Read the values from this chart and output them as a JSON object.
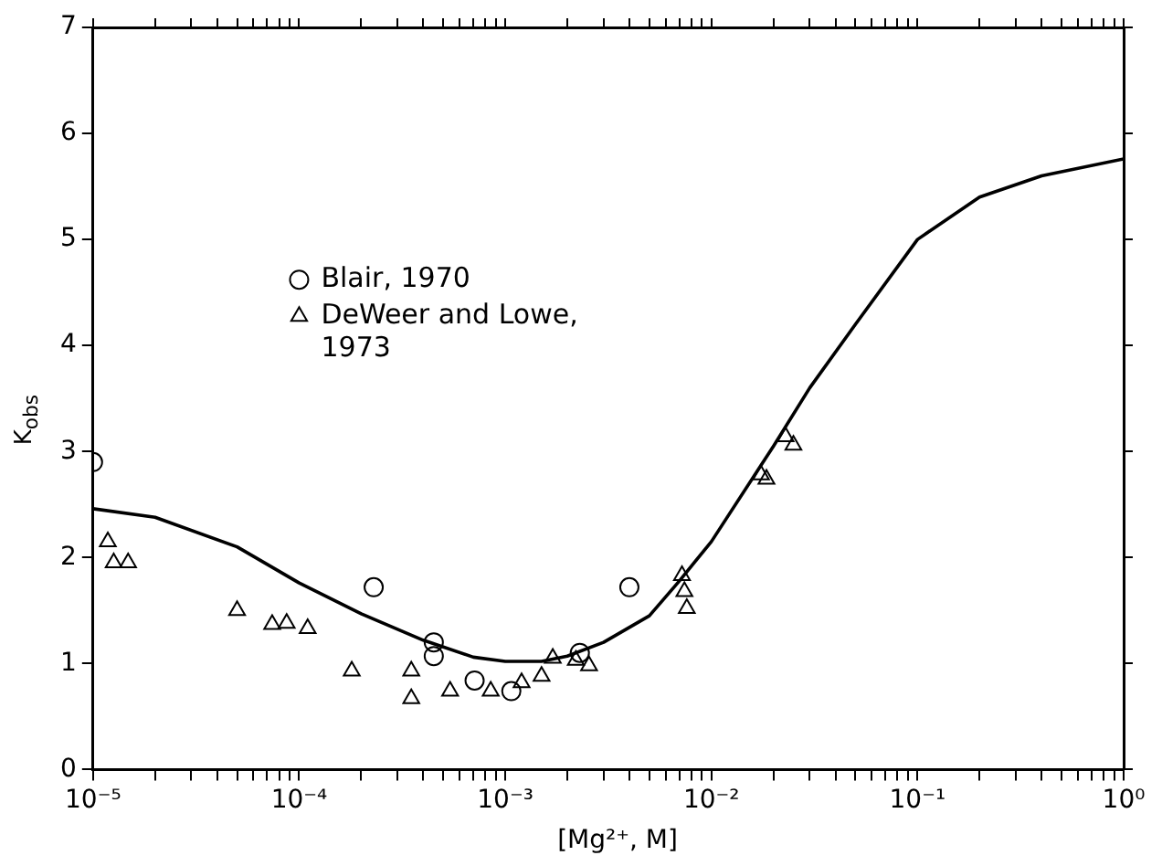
{
  "chart_data": {
    "type": "scatter",
    "xlabel": "[Mg²⁺, M]",
    "ylabel": "K$_{obs}$",
    "log": "x",
    "grid": false,
    "legend": "center",
    "xlim": [
      1e-05,
      1
    ],
    "ylim": [
      0,
      7
    ],
    "yticks": [
      0,
      1,
      2,
      3,
      4,
      5,
      6,
      7
    ],
    "xticks": [
      {
        "value": 1e-05,
        "label": "10⁻⁵"
      },
      {
        "value": 2e-05,
        "label": null
      },
      {
        "value": 3e-05,
        "label": null
      },
      {
        "value": 4e-05,
        "label": null
      },
      {
        "value": 5e-05,
        "label": null
      },
      {
        "value": 6e-05,
        "label": null
      },
      {
        "value": 7e-05,
        "label": null
      },
      {
        "value": 8e-05,
        "label": null
      },
      {
        "value": 9e-05,
        "label": null
      },
      {
        "value": 0.0001,
        "label": "10⁻⁴"
      },
      {
        "value": 0.0002,
        "label": null
      },
      {
        "value": 0.0003,
        "label": null
      },
      {
        "value": 0.0004,
        "label": null
      },
      {
        "value": 0.0005,
        "label": null
      },
      {
        "value": 0.0006,
        "label": null
      },
      {
        "value": 0.0007,
        "label": null
      },
      {
        "value": 0.0008,
        "label": null
      },
      {
        "value": 0.0009,
        "label": null
      },
      {
        "value": 0.001,
        "label": "10⁻³"
      },
      {
        "value": 0.002,
        "label": null
      },
      {
        "value": 0.003,
        "label": null
      },
      {
        "value": 0.004,
        "label": null
      },
      {
        "value": 0.005,
        "label": null
      },
      {
        "value": 0.006,
        "label": null
      },
      {
        "value": 0.007,
        "label": null
      },
      {
        "value": 0.008,
        "label": null
      },
      {
        "value": 0.009,
        "label": null
      },
      {
        "value": 0.01,
        "label": "10⁻²"
      },
      {
        "value": 0.02,
        "label": null
      },
      {
        "value": 0.03,
        "label": null
      },
      {
        "value": 0.04,
        "label": null
      },
      {
        "value": 0.05,
        "label": null
      },
      {
        "value": 0.06,
        "label": null
      },
      {
        "value": 0.07,
        "label": null
      },
      {
        "value": 0.08,
        "label": null
      },
      {
        "value": 0.09,
        "label": null
      },
      {
        "value": 0.1,
        "label": "10⁻¹"
      },
      {
        "value": 0.2,
        "label": null
      },
      {
        "value": 0.3,
        "label": null
      },
      {
        "value": 0.4,
        "label": null
      },
      {
        "value": 0.5,
        "label": null
      },
      {
        "value": 0.6,
        "label": null
      },
      {
        "value": 0.7,
        "label": null
      },
      {
        "value": 0.8,
        "label": null
      },
      {
        "value": 0.9,
        "label": null
      },
      {
        "value": 1,
        "label": "10⁰"
      }
    ],
    "series": [
      {
        "name": "Blair, 1970",
        "marker": "circle",
        "color": "#000000",
        "x": [
          1e-05,
          0.00023,
          0.00045,
          0.00045,
          0.00071,
          0.00107,
          0.0023,
          0.004
        ],
        "values": [
          2.9,
          1.72,
          1.2,
          1.07,
          0.84,
          0.74,
          1.1,
          1.72
        ]
      },
      {
        "name": "DeWeer and Lowe, 1973",
        "marker": "triangle",
        "color": "#000000",
        "x": [
          1.18e-05,
          1.26e-05,
          1.48e-05,
          5e-05,
          7.4e-05,
          8.7e-05,
          0.00011,
          0.00018,
          0.00035,
          0.00035,
          0.00054,
          0.00085,
          0.0012,
          0.0015,
          0.0017,
          0.0022,
          0.00255,
          0.0072,
          0.0074,
          0.0076,
          0.0174,
          0.0185,
          0.0229,
          0.025
        ],
        "values": [
          2.15,
          1.95,
          1.95,
          1.5,
          1.37,
          1.38,
          1.33,
          0.93,
          0.93,
          0.67,
          0.74,
          0.74,
          0.82,
          0.88,
          1.05,
          1.03,
          0.98,
          1.83,
          1.68,
          1.52,
          2.78,
          2.74,
          3.14,
          3.06
        ]
      },
      {
        "type": "line",
        "marker": "none",
        "line_style": "solid",
        "color": "#000000",
        "x": [
          1e-05,
          2e-05,
          5e-05,
          0.0001,
          0.0002,
          0.0004,
          0.0007,
          0.001,
          0.0015,
          0.002,
          0.003,
          0.005,
          0.007,
          0.01,
          0.02,
          0.03,
          0.05,
          0.1,
          0.2,
          0.4,
          1
        ],
        "values": [
          2.46,
          2.38,
          2.1,
          1.76,
          1.47,
          1.22,
          1.06,
          1.02,
          1.02,
          1.07,
          1.2,
          1.45,
          1.78,
          2.15,
          3.05,
          3.6,
          4.2,
          5.0,
          5.4,
          5.6,
          5.76
        ]
      }
    ]
  }
}
